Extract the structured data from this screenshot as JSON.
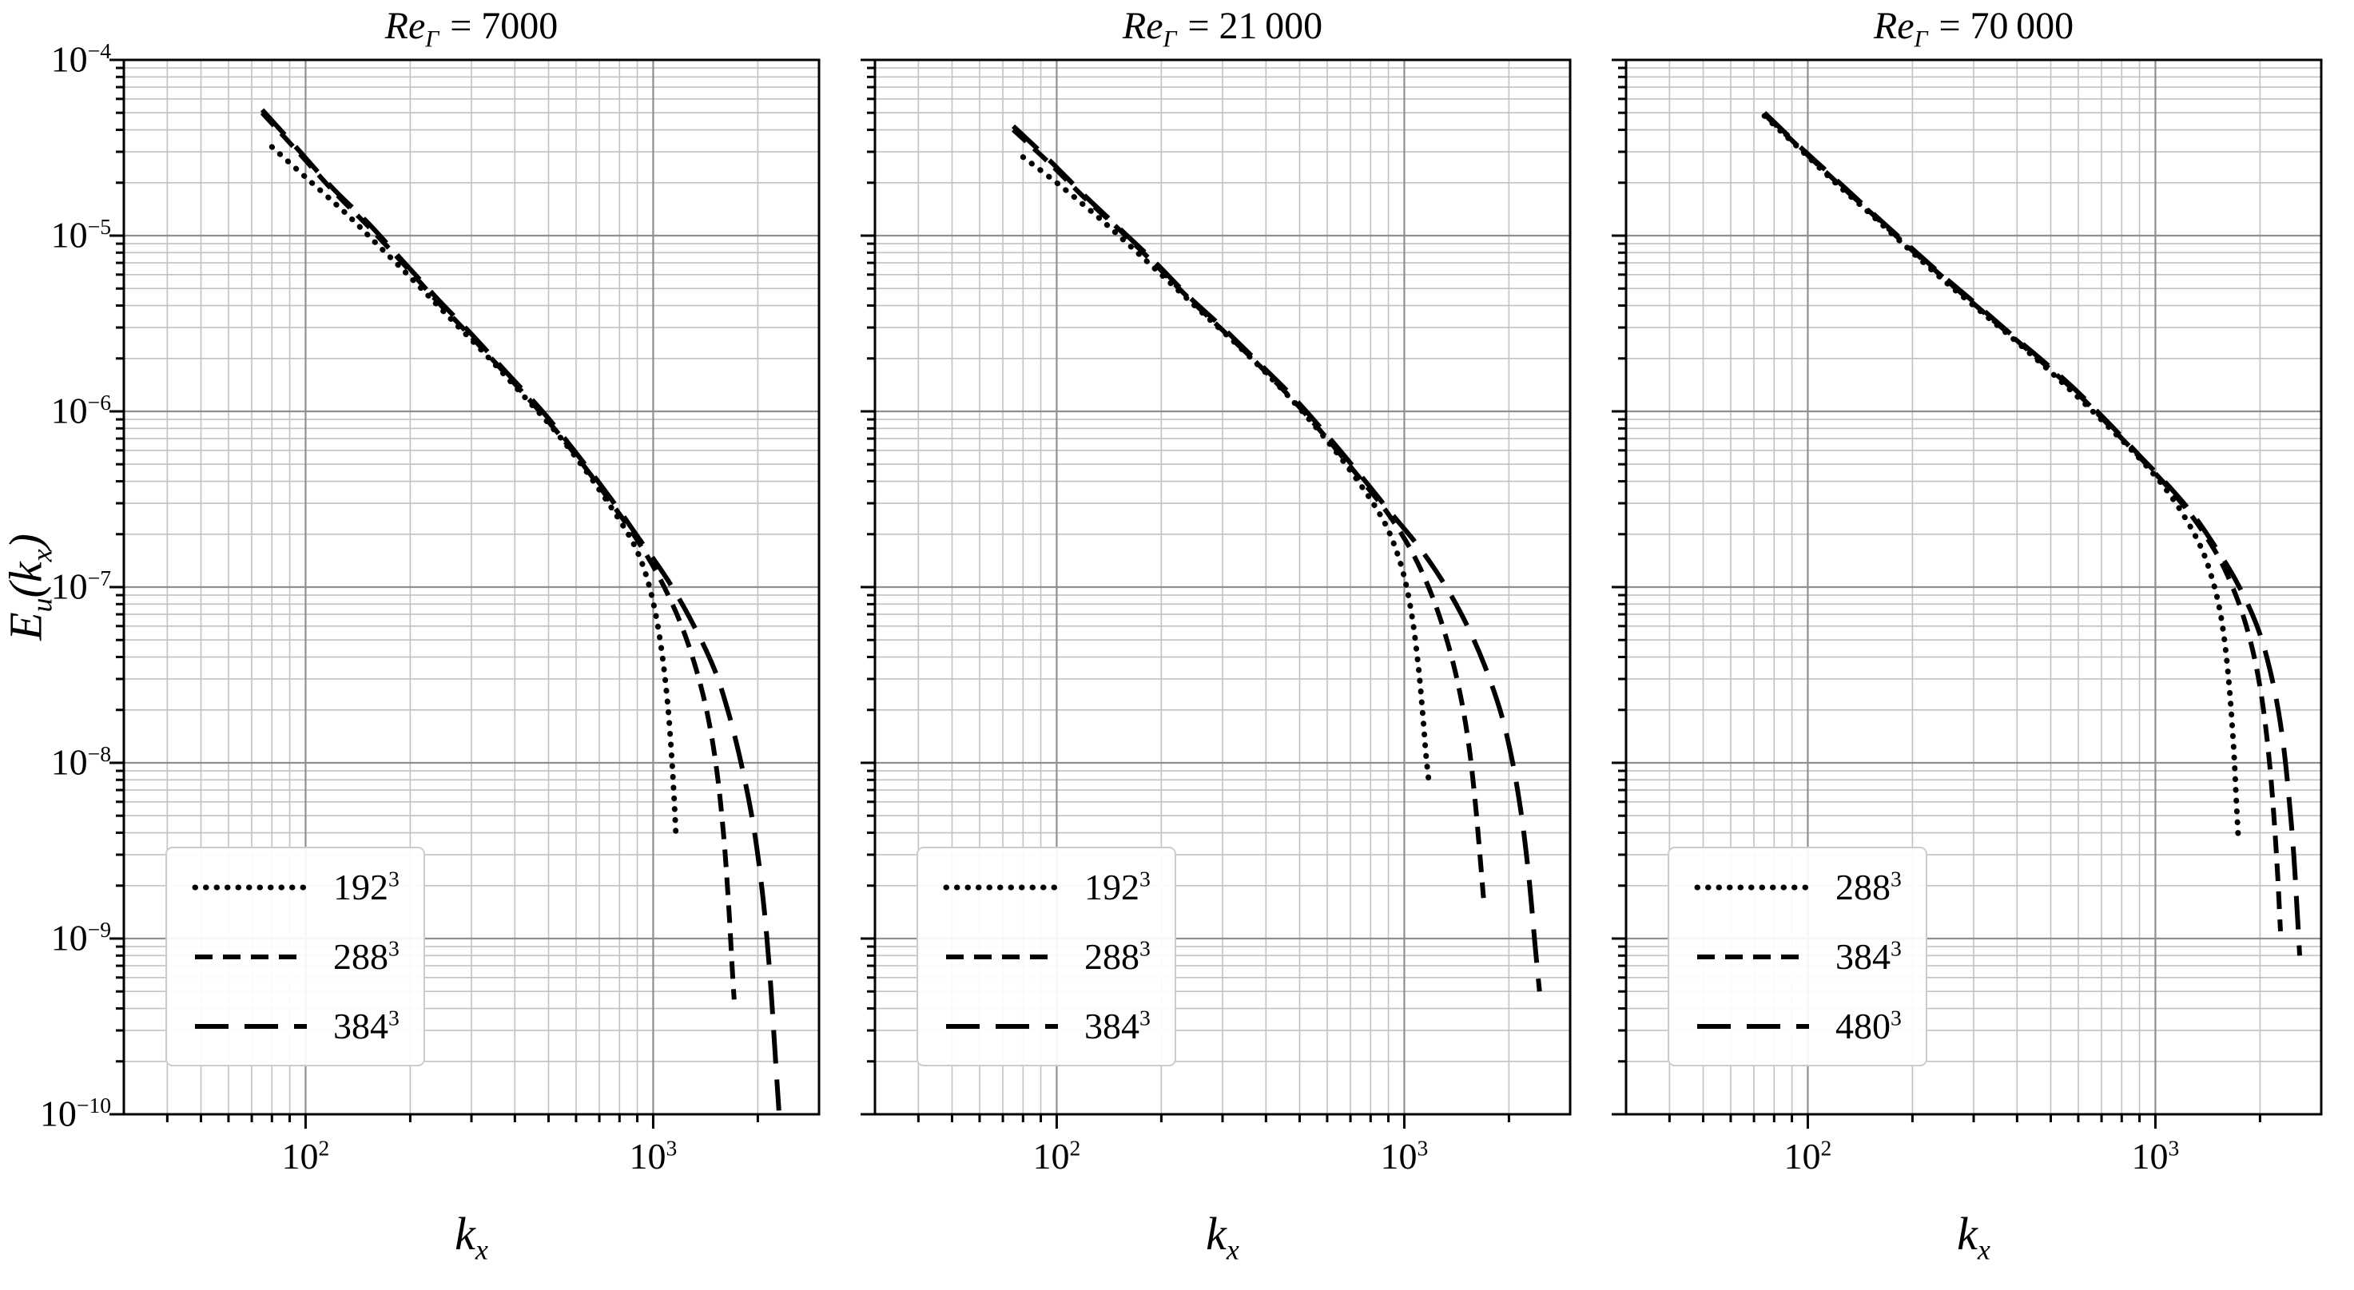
{
  "figure": {
    "ylabel": {
      "E": "E",
      "sub": "u",
      "open": "(",
      "k": "k",
      "ksub": "x",
      "close": ")"
    },
    "xlabel": {
      "k": "k",
      "sub": "x"
    }
  },
  "style": {
    "curve_color": "#000000",
    "major_grid_color": "#8f8f8f",
    "minor_grid_color": "#c2c2c2",
    "spine_color": "#000000",
    "legend_border_color": "#cccccc"
  },
  "chart_data": [
    {
      "type": "line",
      "title": {
        "main": "Re",
        "sub": "Γ",
        "rest": "= 7000"
      },
      "xlabel": "k_x",
      "ylabel": "E_u(k_x)",
      "xscale": "log",
      "yscale": "log",
      "xlim": [
        30,
        3000
      ],
      "ylim": [
        1e-10,
        0.0001
      ],
      "xticks": [
        100,
        1000
      ],
      "yticks": [
        0.0001,
        1e-05,
        1e-06,
        1e-07,
        1e-08,
        1e-09,
        1e-10
      ],
      "grid": "major+minor",
      "legend_position": "lower left",
      "series": [
        {
          "name": "192^3",
          "label": {
            "base": "192",
            "exp": "3"
          },
          "linestyle": "dotted",
          "color": "#000000",
          "points": [
            [
              80,
              3.2e-05
            ],
            [
              100,
              2.15e-05
            ],
            [
              130,
              1.35e-05
            ],
            [
              160,
              9e-06
            ],
            [
              200,
              5.8e-06
            ],
            [
              260,
              3.4e-06
            ],
            [
              330,
              2.1e-06
            ],
            [
              420,
              1.25e-06
            ],
            [
              520,
              7.8e-07
            ],
            [
              640,
              4.6e-07
            ],
            [
              780,
              2.6e-07
            ],
            [
              880,
              1.75e-07
            ],
            [
              950,
              1.2e-07
            ],
            [
              1010,
              7.5e-08
            ],
            [
              1060,
              4.2e-08
            ],
            [
              1100,
              2.2e-08
            ],
            [
              1130,
              1.1e-08
            ],
            [
              1150,
              6e-09
            ],
            [
              1165,
              3.6e-09
            ]
          ]
        },
        {
          "name": "288^3",
          "label": {
            "base": "288",
            "exp": "3"
          },
          "linestyle": "dashed",
          "color": "#000000",
          "points": [
            [
              75,
              5e-05
            ],
            [
              95,
              3e-05
            ],
            [
              120,
              1.8e-05
            ],
            [
              150,
              1.15e-05
            ],
            [
              190,
              7e-06
            ],
            [
              240,
              4.2e-06
            ],
            [
              300,
              2.65e-06
            ],
            [
              380,
              1.6e-06
            ],
            [
              480,
              9.6e-07
            ],
            [
              600,
              5.6e-07
            ],
            [
              750,
              3.1e-07
            ],
            [
              900,
              1.85e-07
            ],
            [
              1050,
              1.1e-07
            ],
            [
              1200,
              6.2e-08
            ],
            [
              1330,
              3.4e-08
            ],
            [
              1440,
              1.8e-08
            ],
            [
              1530,
              8.5e-09
            ],
            [
              1600,
              3.6e-09
            ],
            [
              1650,
              1.5e-09
            ],
            [
              1690,
              6.5e-10
            ],
            [
              1710,
              4.5e-10
            ]
          ]
        },
        {
          "name": "384^3",
          "label": {
            "base": "384",
            "exp": "3"
          },
          "linestyle": "longdash",
          "color": "#000000",
          "points": [
            [
              75,
              5.2e-05
            ],
            [
              95,
              3.1e-05
            ],
            [
              120,
              1.85e-05
            ],
            [
              150,
              1.2e-05
            ],
            [
              190,
              7.2e-06
            ],
            [
              240,
              4.35e-06
            ],
            [
              300,
              2.75e-06
            ],
            [
              380,
              1.65e-06
            ],
            [
              480,
              1e-06
            ],
            [
              600,
              5.8e-07
            ],
            [
              750,
              3.25e-07
            ],
            [
              900,
              1.95e-07
            ],
            [
              1100,
              1.1e-07
            ],
            [
              1300,
              6.2e-08
            ],
            [
              1500,
              3.4e-08
            ],
            [
              1650,
              1.9e-08
            ],
            [
              1800,
              9.5e-09
            ],
            [
              1950,
              4.2e-09
            ],
            [
              2070,
              1.7e-09
            ],
            [
              2170,
              6e-10
            ],
            [
              2250,
              2e-10
            ],
            [
              2300,
              1.05e-10
            ]
          ]
        }
      ]
    },
    {
      "type": "line",
      "title": {
        "main": "Re",
        "sub": "Γ",
        "rest": "= 21 000"
      },
      "xlabel": "k_x",
      "ylabel": "E_u(k_x)",
      "xscale": "log",
      "yscale": "log",
      "xlim": [
        30,
        3000
      ],
      "ylim": [
        1e-10,
        0.0001
      ],
      "xticks": [
        100,
        1000
      ],
      "yticks": [
        0.0001,
        1e-05,
        1e-06,
        1e-07,
        1e-08,
        1e-09,
        1e-10
      ],
      "grid": "major+minor",
      "legend_position": "lower left",
      "series": [
        {
          "name": "192^3",
          "label": {
            "base": "192",
            "exp": "3"
          },
          "linestyle": "dotted",
          "color": "#000000",
          "points": [
            [
              80,
              2.8e-05
            ],
            [
              100,
              2e-05
            ],
            [
              130,
              1.3e-05
            ],
            [
              160,
              9e-06
            ],
            [
              200,
              6e-06
            ],
            [
              260,
              3.7e-06
            ],
            [
              330,
              2.4e-06
            ],
            [
              420,
              1.5e-06
            ],
            [
              520,
              9.5e-07
            ],
            [
              640,
              5.8e-07
            ],
            [
              780,
              3.4e-07
            ],
            [
              880,
              2.3e-07
            ],
            [
              950,
              1.6e-07
            ],
            [
              1010,
              1.05e-07
            ],
            [
              1060,
              6.2e-08
            ],
            [
              1100,
              3.4e-08
            ],
            [
              1130,
              1.9e-08
            ],
            [
              1155,
              1.1e-08
            ],
            [
              1175,
              8e-09
            ]
          ]
        },
        {
          "name": "288^3",
          "label": {
            "base": "288",
            "exp": "3"
          },
          "linestyle": "dashed",
          "color": "#000000",
          "points": [
            [
              75,
              4e-05
            ],
            [
              95,
              2.6e-05
            ],
            [
              120,
              1.65e-05
            ],
            [
              150,
              1.1e-05
            ],
            [
              190,
              7e-06
            ],
            [
              240,
              4.4e-06
            ],
            [
              300,
              2.9e-06
            ],
            [
              380,
              1.85e-06
            ],
            [
              480,
              1.15e-06
            ],
            [
              600,
              7e-07
            ],
            [
              750,
              4.1e-07
            ],
            [
              900,
              2.6e-07
            ],
            [
              1050,
              1.6e-07
            ],
            [
              1200,
              9e-08
            ],
            [
              1330,
              4.9e-08
            ],
            [
              1440,
              2.6e-08
            ],
            [
              1530,
              1.3e-08
            ],
            [
              1600,
              6e-09
            ],
            [
              1650,
              3e-09
            ],
            [
              1690,
              1.7e-09
            ]
          ]
        },
        {
          "name": "384^3",
          "label": {
            "base": "384",
            "exp": "3"
          },
          "linestyle": "longdash",
          "color": "#000000",
          "points": [
            [
              75,
              4.2e-05
            ],
            [
              95,
              2.7e-05
            ],
            [
              120,
              1.7e-05
            ],
            [
              150,
              1.12e-05
            ],
            [
              190,
              7.2e-06
            ],
            [
              240,
              4.5e-06
            ],
            [
              300,
              3e-06
            ],
            [
              380,
              1.9e-06
            ],
            [
              480,
              1.2e-06
            ],
            [
              600,
              7.3e-07
            ],
            [
              750,
              4.3e-07
            ],
            [
              900,
              2.75e-07
            ],
            [
              1100,
              1.7e-07
            ],
            [
              1300,
              1.05e-07
            ],
            [
              1500,
              6.3e-08
            ],
            [
              1700,
              3.6e-08
            ],
            [
              1900,
              1.9e-08
            ],
            [
              2050,
              1e-08
            ],
            [
              2180,
              4.8e-09
            ],
            [
              2290,
              2.1e-09
            ],
            [
              2380,
              9e-10
            ],
            [
              2450,
              5e-10
            ]
          ]
        }
      ]
    },
    {
      "type": "line",
      "title": {
        "main": "Re",
        "sub": "Γ",
        "rest": "= 70 000"
      },
      "xlabel": "k_x",
      "ylabel": "E_u(k_x)",
      "xscale": "log",
      "yscale": "log",
      "xlim": [
        30,
        3000
      ],
      "ylim": [
        1e-10,
        0.0001
      ],
      "xticks": [
        100,
        1000
      ],
      "yticks": [
        0.0001,
        1e-05,
        1e-06,
        1e-07,
        1e-08,
        1e-09,
        1e-10
      ],
      "grid": "major+minor",
      "legend_position": "lower left",
      "series": [
        {
          "name": "288^3",
          "label": {
            "base": "288",
            "exp": "3"
          },
          "linestyle": "dotted",
          "color": "#000000",
          "points": [
            [
              75,
              4.8e-05
            ],
            [
              95,
              3.1e-05
            ],
            [
              120,
              2e-05
            ],
            [
              150,
              1.35e-05
            ],
            [
              190,
              8.8e-06
            ],
            [
              240,
              5.8e-06
            ],
            [
              300,
              4e-06
            ],
            [
              380,
              2.7e-06
            ],
            [
              480,
              1.8e-06
            ],
            [
              600,
              1.2e-06
            ],
            [
              750,
              7.8e-07
            ],
            [
              900,
              5.4e-07
            ],
            [
              1050,
              3.8e-07
            ],
            [
              1200,
              2.6e-07
            ],
            [
              1350,
              1.7e-07
            ],
            [
              1450,
              1.15e-07
            ],
            [
              1530,
              7.5e-08
            ],
            [
              1590,
              4.5e-08
            ],
            [
              1640,
              2.4e-08
            ],
            [
              1680,
              1.2e-08
            ],
            [
              1710,
              6e-09
            ],
            [
              1735,
              3.5e-09
            ]
          ]
        },
        {
          "name": "384^3",
          "label": {
            "base": "384",
            "exp": "3"
          },
          "linestyle": "dashed",
          "color": "#000000",
          "points": [
            [
              75,
              4.9e-05
            ],
            [
              95,
              3.15e-05
            ],
            [
              120,
              2.05e-05
            ],
            [
              150,
              1.38e-05
            ],
            [
              190,
              9e-06
            ],
            [
              240,
              6e-06
            ],
            [
              300,
              4.1e-06
            ],
            [
              380,
              2.75e-06
            ],
            [
              480,
              1.85e-06
            ],
            [
              600,
              1.25e-06
            ],
            [
              750,
              8e-07
            ],
            [
              900,
              5.5e-07
            ],
            [
              1100,
              3.6e-07
            ],
            [
              1300,
              2.4e-07
            ],
            [
              1500,
              1.55e-07
            ],
            [
              1650,
              1.05e-07
            ],
            [
              1800,
              6.6e-08
            ],
            [
              1930,
              3.9e-08
            ],
            [
              2040,
              2.1e-08
            ],
            [
              2130,
              1e-08
            ],
            [
              2200,
              4.5e-09
            ],
            [
              2250,
              2.2e-09
            ],
            [
              2290,
              1.1e-09
            ]
          ]
        },
        {
          "name": "480^3",
          "label": {
            "base": "480",
            "exp": "3"
          },
          "linestyle": "longdash",
          "color": "#000000",
          "points": [
            [
              75,
              5e-05
            ],
            [
              95,
              3.2e-05
            ],
            [
              120,
              2.1e-05
            ],
            [
              150,
              1.4e-05
            ],
            [
              190,
              9.2e-06
            ],
            [
              240,
              6.1e-06
            ],
            [
              300,
              4.2e-06
            ],
            [
              380,
              2.8e-06
            ],
            [
              480,
              1.9e-06
            ],
            [
              600,
              1.28e-06
            ],
            [
              750,
              8.2e-07
            ],
            [
              900,
              5.6e-07
            ],
            [
              1100,
              3.7e-07
            ],
            [
              1300,
              2.5e-07
            ],
            [
              1500,
              1.65e-07
            ],
            [
              1700,
              1.1e-07
            ],
            [
              1900,
              7e-08
            ],
            [
              2050,
              4.6e-08
            ],
            [
              2200,
              2.6e-08
            ],
            [
              2320,
              1.4e-08
            ],
            [
              2420,
              6.5e-09
            ],
            [
              2500,
              3e-09
            ],
            [
              2560,
              1.4e-09
            ],
            [
              2600,
              8e-10
            ]
          ]
        }
      ]
    }
  ]
}
